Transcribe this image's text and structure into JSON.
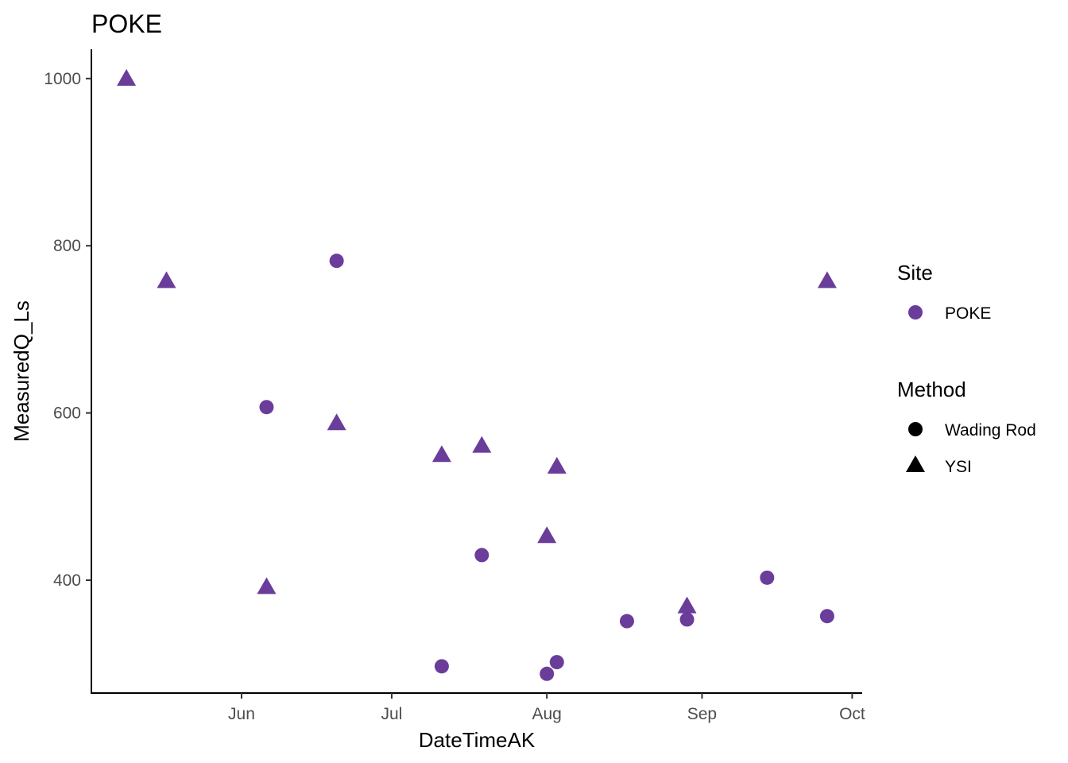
{
  "chart_data": {
    "type": "scatter",
    "title": "POKE",
    "xlabel": "DateTimeAK",
    "ylabel": "MeasuredQ_Ls",
    "x_ticks": [
      {
        "date": "2020-06-01",
        "label": "Jun"
      },
      {
        "date": "2020-07-01",
        "label": "Jul"
      },
      {
        "date": "2020-08-01",
        "label": "Aug"
      },
      {
        "date": "2020-09-01",
        "label": "Sep"
      },
      {
        "date": "2020-10-01",
        "label": "Oct"
      }
    ],
    "xlim": [
      "2020-05-02",
      "2020-10-03"
    ],
    "y_ticks": [
      400,
      600,
      800,
      1000
    ],
    "ylim": [
      265,
      1035
    ],
    "grid": false,
    "legend_position": "right",
    "series_color": "#6a3d9a",
    "legend": {
      "site": {
        "title": "Site",
        "items": [
          {
            "label": "POKE",
            "shape": "circle"
          }
        ]
      },
      "method": {
        "title": "Method",
        "items": [
          {
            "label": "Wading Rod",
            "shape": "circle"
          },
          {
            "label": "YSI",
            "shape": "triangle"
          }
        ]
      }
    },
    "series": [
      {
        "name": "Wading Rod",
        "shape": "circle",
        "points": [
          {
            "x": "2020-06-06",
            "y": 607
          },
          {
            "x": "2020-06-20",
            "y": 782
          },
          {
            "x": "2020-07-11",
            "y": 297
          },
          {
            "x": "2020-07-19",
            "y": 430
          },
          {
            "x": "2020-08-01",
            "y": 288
          },
          {
            "x": "2020-08-03",
            "y": 302
          },
          {
            "x": "2020-08-17",
            "y": 351
          },
          {
            "x": "2020-08-29",
            "y": 353
          },
          {
            "x": "2020-09-14",
            "y": 403
          },
          {
            "x": "2020-09-26",
            "y": 357
          }
        ]
      },
      {
        "name": "YSI",
        "shape": "triangle",
        "points": [
          {
            "x": "2020-05-09",
            "y": 1000
          },
          {
            "x": "2020-05-17",
            "y": 758
          },
          {
            "x": "2020-06-06",
            "y": 392
          },
          {
            "x": "2020-06-20",
            "y": 588
          },
          {
            "x": "2020-07-11",
            "y": 550
          },
          {
            "x": "2020-07-19",
            "y": 561
          },
          {
            "x": "2020-08-01",
            "y": 453
          },
          {
            "x": "2020-08-03",
            "y": 536
          },
          {
            "x": "2020-08-29",
            "y": 369
          },
          {
            "x": "2020-09-26",
            "y": 758
          }
        ]
      }
    ]
  }
}
